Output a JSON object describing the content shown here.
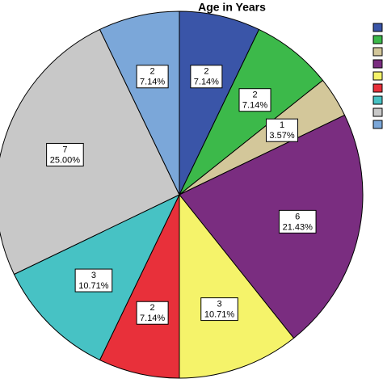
{
  "chart_data": {
    "type": "pie",
    "title": "Age in Years",
    "categories": [
      null,
      null,
      null,
      null,
      null,
      null,
      null,
      null,
      null
    ],
    "values": [
      2,
      2,
      1,
      6,
      3,
      2,
      3,
      7,
      2
    ],
    "percent_labels": [
      "7.14%",
      "7.14%",
      "3.57%",
      "21.43%",
      "10.71%",
      "7.14%",
      "10.71%",
      "25.00%",
      "7.14%"
    ],
    "colors": [
      "#3a55a8",
      "#3cb94a",
      "#d3c79a",
      "#7a2d80",
      "#f5f36a",
      "#e8303a",
      "#47c2c4",
      "#c8c8c8",
      "#7ba7d9"
    ]
  }
}
